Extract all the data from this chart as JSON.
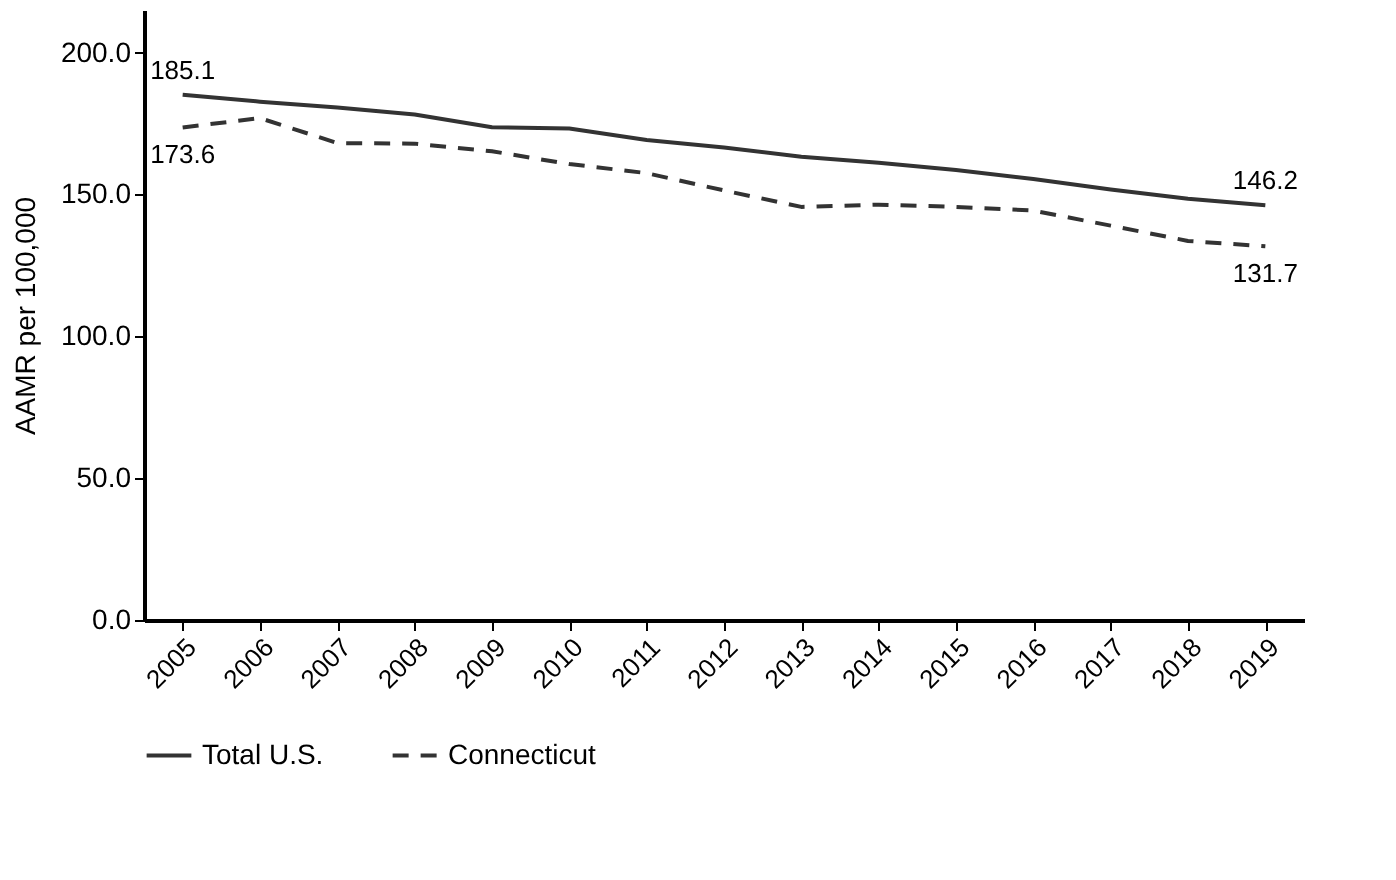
{
  "chart_data": {
    "type": "line",
    "ylabel": "AAMR per 100,000",
    "categories": [
      "2005",
      "2006",
      "2007",
      "2008",
      "2009",
      "2010",
      "2011",
      "2012",
      "2013",
      "2014",
      "2015",
      "2016",
      "2017",
      "2018",
      "2019"
    ],
    "series": [
      {
        "name": "Total U.S.",
        "color": "#333333",
        "line_style": "solid",
        "values": [
          185.1,
          182.7,
          180.6,
          178.2,
          173.7,
          173.2,
          169.2,
          166.5,
          163.3,
          161.2,
          158.6,
          155.4,
          151.7,
          148.5,
          146.2
        ],
        "value_labels": [
          "185.1",
          null,
          null,
          null,
          null,
          null,
          null,
          null,
          null,
          null,
          null,
          null,
          null,
          null,
          "146.2"
        ]
      },
      {
        "name": "Connecticut",
        "color": "#333333",
        "line_style": "dashed",
        "values": [
          173.6,
          176.9,
          168.1,
          167.9,
          165.2,
          160.7,
          157.5,
          151.4,
          145.6,
          146.4,
          145.6,
          144.3,
          139.0,
          133.6,
          131.7
        ],
        "value_labels": [
          "173.6",
          null,
          null,
          null,
          null,
          null,
          null,
          null,
          null,
          null,
          null,
          null,
          null,
          null,
          "131.7"
        ]
      }
    ],
    "ylim": [
      0,
      215
    ],
    "yticks": [
      {
        "value": 0,
        "label": "0.0"
      },
      {
        "value": 50,
        "label": "50.0"
      },
      {
        "value": 100,
        "label": "100.0"
      },
      {
        "value": 150,
        "label": "150.0"
      },
      {
        "value": 200,
        "label": "200.0"
      }
    ],
    "grid": false,
    "legend": "bottom",
    "marker": "none"
  }
}
